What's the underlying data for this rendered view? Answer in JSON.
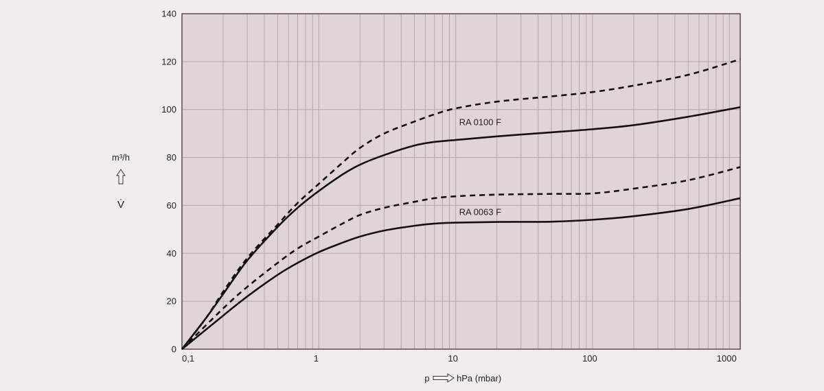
{
  "chart_data": {
    "type": "line",
    "x_scale": "log",
    "xlim": [
      0.1,
      1200
    ],
    "ylim": [
      0,
      140
    ],
    "grid": true,
    "xlabel": {
      "left": "p",
      "right": "hPa (mbar)"
    },
    "ylabel": {
      "unit": "m³/h",
      "symbol": "V̇"
    },
    "x_ticks": [
      {
        "value": 0.1,
        "label": "0,1"
      },
      {
        "value": 1,
        "label": "1"
      },
      {
        "value": 10,
        "label": "10"
      },
      {
        "value": 100,
        "label": "100"
      },
      {
        "value": 1000,
        "label": "1000"
      }
    ],
    "y_ticks": [
      {
        "value": 0,
        "label": "0"
      },
      {
        "value": 20,
        "label": "20"
      },
      {
        "value": 40,
        "label": "40"
      },
      {
        "value": 60,
        "label": "60"
      },
      {
        "value": 80,
        "label": "80"
      },
      {
        "value": 100,
        "label": "100"
      },
      {
        "value": 120,
        "label": "120"
      },
      {
        "value": 140,
        "label": "140"
      }
    ],
    "series": [
      {
        "name": "RA 0100 F",
        "style": "solid",
        "points": [
          [
            0.1,
            0
          ],
          [
            0.15,
            13
          ],
          [
            0.2,
            23
          ],
          [
            0.3,
            37
          ],
          [
            0.5,
            51
          ],
          [
            0.7,
            59
          ],
          [
            1,
            66
          ],
          [
            1.5,
            73
          ],
          [
            2,
            77
          ],
          [
            3,
            81
          ],
          [
            5,
            85
          ],
          [
            7,
            86.5
          ],
          [
            10,
            87.3
          ],
          [
            20,
            88.8
          ],
          [
            50,
            90.5
          ],
          [
            100,
            91.8
          ],
          [
            200,
            93.5
          ],
          [
            500,
            97
          ],
          [
            1200,
            101
          ]
        ]
      },
      {
        "name": "",
        "style": "dashed",
        "points": [
          [
            0.1,
            0
          ],
          [
            0.15,
            13
          ],
          [
            0.2,
            24
          ],
          [
            0.3,
            38
          ],
          [
            0.5,
            52
          ],
          [
            0.7,
            61
          ],
          [
            1,
            69
          ],
          [
            1.5,
            78
          ],
          [
            2,
            84
          ],
          [
            3,
            90
          ],
          [
            5,
            95
          ],
          [
            7,
            98
          ],
          [
            10,
            100.5
          ],
          [
            20,
            103.3
          ],
          [
            50,
            105.5
          ],
          [
            100,
            107.3
          ],
          [
            200,
            110
          ],
          [
            500,
            114.5
          ],
          [
            1200,
            121
          ]
        ]
      },
      {
        "name": "RA 0063 F",
        "style": "solid",
        "points": [
          [
            0.1,
            0
          ],
          [
            0.2,
            14
          ],
          [
            0.3,
            22
          ],
          [
            0.5,
            31
          ],
          [
            0.7,
            36
          ],
          [
            1,
            40.5
          ],
          [
            1.5,
            44.5
          ],
          [
            2,
            47
          ],
          [
            3,
            49.5
          ],
          [
            5,
            51.5
          ],
          [
            7,
            52.4
          ],
          [
            10,
            52.8
          ],
          [
            20,
            53.1
          ],
          [
            50,
            53.2
          ],
          [
            100,
            54
          ],
          [
            200,
            55.5
          ],
          [
            500,
            58.5
          ],
          [
            1200,
            63
          ]
        ]
      },
      {
        "name": "",
        "style": "dashed",
        "points": [
          [
            0.1,
            0
          ],
          [
            0.2,
            17
          ],
          [
            0.3,
            26
          ],
          [
            0.5,
            36
          ],
          [
            0.7,
            42
          ],
          [
            1,
            47
          ],
          [
            1.5,
            52.5
          ],
          [
            2,
            56
          ],
          [
            3,
            59
          ],
          [
            5,
            61.5
          ],
          [
            7,
            63
          ],
          [
            10,
            63.8
          ],
          [
            20,
            64.5
          ],
          [
            50,
            64.8
          ],
          [
            100,
            65
          ],
          [
            200,
            67
          ],
          [
            500,
            70.5
          ],
          [
            1200,
            76
          ]
        ]
      }
    ],
    "annotations": [
      {
        "text": "RA 0100 F",
        "x": 10,
        "y": 93.5
      },
      {
        "text": "RA 0063 F",
        "x": 10,
        "y": 56
      }
    ]
  }
}
